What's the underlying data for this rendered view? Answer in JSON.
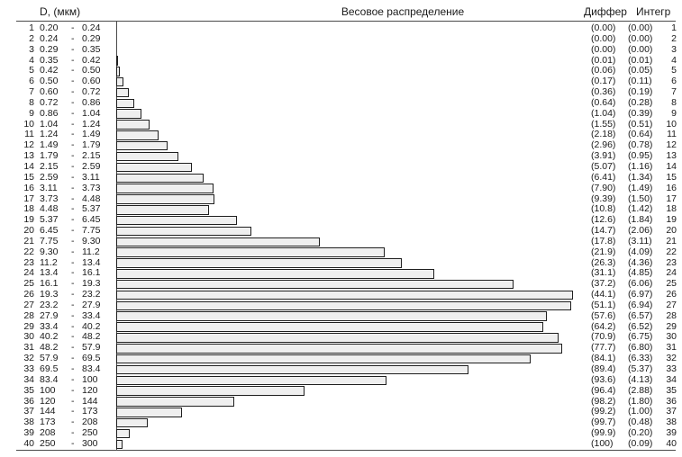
{
  "chart_data": {
    "type": "bar",
    "orientation": "horizontal",
    "title": "Весовое распределение",
    "axis_label": "D, (мкм)",
    "column_headers": [
      "Диффер",
      "Интегр"
    ],
    "bars_from_column": 1,
    "bar_value_max": 6.97,
    "grid": false,
    "rows": [
      {
        "n": 1,
        "lo": "0.20",
        "hi": "0.24",
        "v": [
          "0.00",
          "0.00"
        ]
      },
      {
        "n": 2,
        "lo": "0.24",
        "hi": "0.29",
        "v": [
          "0.00",
          "0.00"
        ]
      },
      {
        "n": 3,
        "lo": "0.29",
        "hi": "0.35",
        "v": [
          "0.00",
          "0.00"
        ]
      },
      {
        "n": 4,
        "lo": "0.35",
        "hi": "0.42",
        "v": [
          "0.01",
          "0.01"
        ]
      },
      {
        "n": 5,
        "lo": "0.42",
        "hi": "0.50",
        "v": [
          "0.06",
          "0.05"
        ]
      },
      {
        "n": 6,
        "lo": "0.50",
        "hi": "0.60",
        "v": [
          "0.17",
          "0.11"
        ]
      },
      {
        "n": 7,
        "lo": "0.60",
        "hi": "0.72",
        "v": [
          "0.36",
          "0.19"
        ]
      },
      {
        "n": 8,
        "lo": "0.72",
        "hi": "0.86",
        "v": [
          "0.64",
          "0.28"
        ]
      },
      {
        "n": 9,
        "lo": "0.86",
        "hi": "1.04",
        "v": [
          "1.04",
          "0.39"
        ]
      },
      {
        "n": 10,
        "lo": "1.04",
        "hi": "1.24",
        "v": [
          "1.55",
          "0.51"
        ]
      },
      {
        "n": 11,
        "lo": "1.24",
        "hi": "1.49",
        "v": [
          "2.18",
          "0.64"
        ]
      },
      {
        "n": 12,
        "lo": "1.49",
        "hi": "1.79",
        "v": [
          "2.96",
          "0.78"
        ]
      },
      {
        "n": 13,
        "lo": "1.79",
        "hi": "2.15",
        "v": [
          "3.91",
          "0.95"
        ]
      },
      {
        "n": 14,
        "lo": "2.15",
        "hi": "2.59",
        "v": [
          "5.07",
          "1.16"
        ]
      },
      {
        "n": 15,
        "lo": "2.59",
        "hi": "3.11",
        "v": [
          "6.41",
          "1.34"
        ]
      },
      {
        "n": 16,
        "lo": "3.11",
        "hi": "3.73",
        "v": [
          "7.90",
          "1.49"
        ]
      },
      {
        "n": 17,
        "lo": "3.73",
        "hi": "4.48",
        "v": [
          "9.39",
          "1.50"
        ]
      },
      {
        "n": 18,
        "lo": "4.48",
        "hi": "5.37",
        "v": [
          "10.8",
          "1.42"
        ]
      },
      {
        "n": 19,
        "lo": "5.37",
        "hi": "6.45",
        "v": [
          "12.6",
          "1.84"
        ]
      },
      {
        "n": 20,
        "lo": "6.45",
        "hi": "7.75",
        "v": [
          "14.7",
          "2.06"
        ]
      },
      {
        "n": 21,
        "lo": "7.75",
        "hi": "9.30",
        "v": [
          "17.8",
          "3.11"
        ]
      },
      {
        "n": 22,
        "lo": "9.30",
        "hi": "11.2",
        "v": [
          "21.9",
          "4.09"
        ]
      },
      {
        "n": 23,
        "lo": "11.2",
        "hi": "13.4",
        "v": [
          "26.3",
          "4.36"
        ]
      },
      {
        "n": 24,
        "lo": "13.4",
        "hi": "16.1",
        "v": [
          "31.1",
          "4.85"
        ]
      },
      {
        "n": 25,
        "lo": "16.1",
        "hi": "19.3",
        "v": [
          "37.2",
          "6.06"
        ]
      },
      {
        "n": 26,
        "lo": "19.3",
        "hi": "23.2",
        "v": [
          "44.1",
          "6.97"
        ]
      },
      {
        "n": 27,
        "lo": "23.2",
        "hi": "27.9",
        "v": [
          "51.1",
          "6.94"
        ]
      },
      {
        "n": 28,
        "lo": "27.9",
        "hi": "33.4",
        "v": [
          "57.6",
          "6.57"
        ]
      },
      {
        "n": 29,
        "lo": "33.4",
        "hi": "40.2",
        "v": [
          "64.2",
          "6.52"
        ]
      },
      {
        "n": 30,
        "lo": "40.2",
        "hi": "48.2",
        "v": [
          "70.9",
          "6.75"
        ]
      },
      {
        "n": 31,
        "lo": "48.2",
        "hi": "57.9",
        "v": [
          "77.7",
          "6.80"
        ]
      },
      {
        "n": 32,
        "lo": "57.9",
        "hi": "69.5",
        "v": [
          "84.1",
          "6.33"
        ]
      },
      {
        "n": 33,
        "lo": "69.5",
        "hi": "83.4",
        "v": [
          "89.4",
          "5.37"
        ]
      },
      {
        "n": 34,
        "lo": "83.4",
        "hi": "100",
        "v": [
          "93.6",
          "4.13"
        ]
      },
      {
        "n": 35,
        "lo": "100",
        "hi": "120",
        "v": [
          "96.4",
          "2.88"
        ]
      },
      {
        "n": 36,
        "lo": "120",
        "hi": "144",
        "v": [
          "98.2",
          "1.80"
        ]
      },
      {
        "n": 37,
        "lo": "144",
        "hi": "173",
        "v": [
          "99.2",
          "1.00"
        ]
      },
      {
        "n": 38,
        "lo": "173",
        "hi": "208",
        "v": [
          "99.7",
          "0.48"
        ]
      },
      {
        "n": 39,
        "lo": "208",
        "hi": "250",
        "v": [
          "99.9",
          "0.20"
        ]
      },
      {
        "n": 40,
        "lo": "250",
        "hi": "300",
        "v": [
          "100",
          "0.09"
        ]
      }
    ],
    "colors": {
      "bar_fill": "#efefef",
      "bar_border": "#1f1f1f",
      "axis_line": "#4a4a4a",
      "text": "#1a1a1a",
      "background": "#ffffff"
    }
  }
}
